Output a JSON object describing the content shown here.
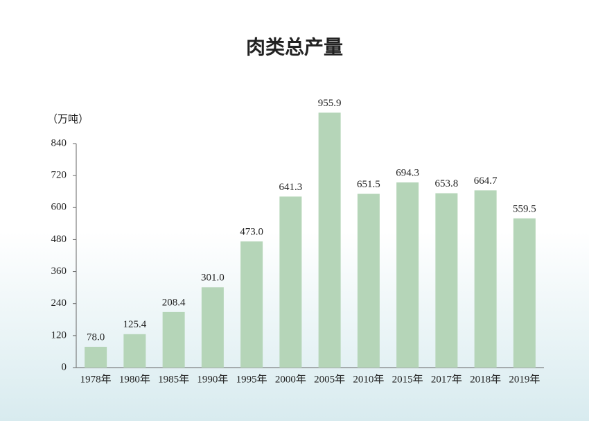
{
  "chart_data": {
    "type": "bar",
    "title": "肉类总产量",
    "y_unit": "（万吨）",
    "categories": [
      "1978年",
      "1980年",
      "1985年",
      "1990年",
      "1995年",
      "2000年",
      "2005年",
      "2010年",
      "2015年",
      "2017年",
      "2018年",
      "2019年"
    ],
    "values": [
      78.0,
      125.4,
      208.4,
      301.0,
      473.0,
      641.3,
      955.9,
      651.5,
      694.3,
      653.8,
      664.7,
      559.5
    ],
    "value_labels": [
      "78.0",
      "125.4",
      "208.4",
      "301.0",
      "473.0",
      "641.3",
      "955.9",
      "651.5",
      "694.3",
      "653.8",
      "664.7",
      "559.5"
    ],
    "color": "#b5d5b8",
    "ylim": [
      0,
      840
    ],
    "yticks": [
      0,
      120,
      240,
      360,
      480,
      600,
      720,
      840
    ],
    "grid": false
  }
}
